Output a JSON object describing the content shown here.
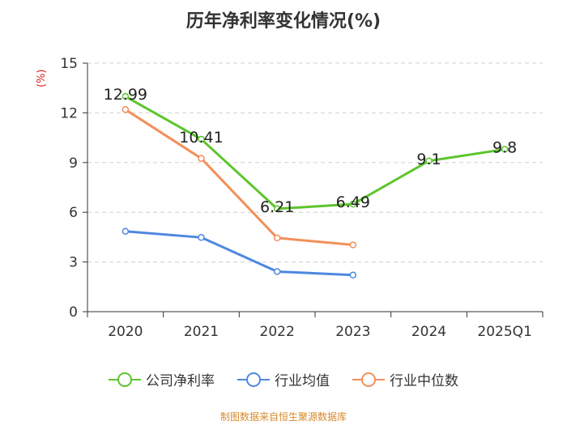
{
  "chart_data": {
    "type": "line",
    "title": "历年净利率变化情况(%)",
    "ylabel": "(%)",
    "categories": [
      "2020",
      "2021",
      "2022",
      "2023",
      "2024",
      "2025Q1"
    ],
    "ylim": [
      0,
      15
    ],
    "yticks": [
      0,
      3,
      6,
      9,
      12,
      15
    ],
    "series": [
      {
        "name": "公司净利率",
        "color": "#5cc52c",
        "values": [
          12.99,
          10.41,
          6.21,
          6.49,
          9.1,
          9.8
        ],
        "labels": [
          "12.99",
          "10.41",
          "6.21",
          "6.49",
          "9.1",
          "9.8"
        ]
      },
      {
        "name": "行业均值",
        "color": "#4d88e0",
        "values": [
          4.85,
          4.48,
          2.42,
          2.21,
          null,
          null
        ]
      },
      {
        "name": "行业中位数",
        "color": "#f2905a",
        "values": [
          12.2,
          9.25,
          4.45,
          4.03,
          null,
          null
        ]
      }
    ]
  },
  "source": "制图数据来自恒生聚源数据库"
}
